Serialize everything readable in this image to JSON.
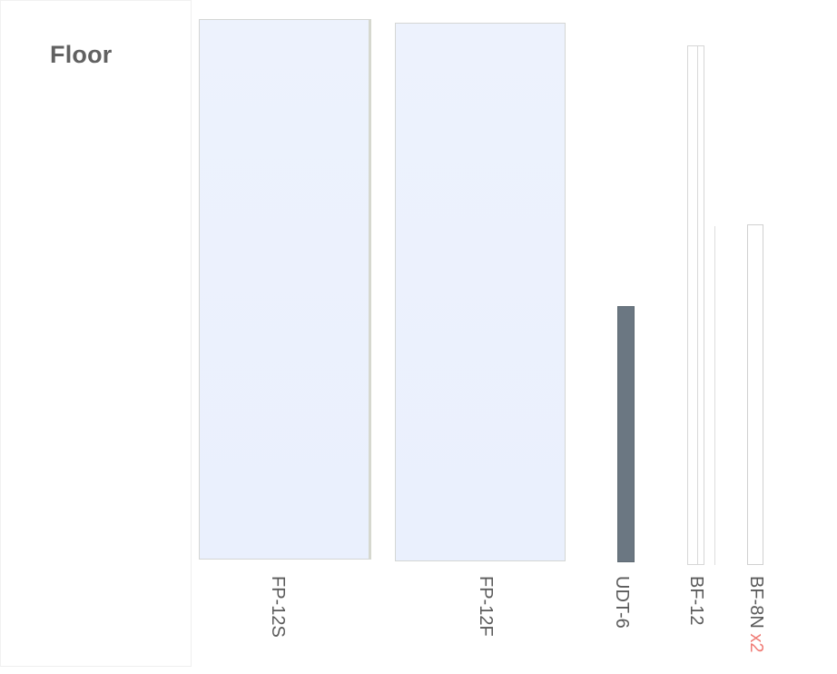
{
  "section": {
    "title": "Floor"
  },
  "items": [
    {
      "label": "FP-12S"
    },
    {
      "label": "FP-12F"
    },
    {
      "label": "UDT-6"
    },
    {
      "label": "BF-12"
    },
    {
      "label": "BF-8N",
      "qty": "x2"
    }
  ],
  "colors": {
    "panel_fill": "#eaf0fd",
    "udt_fill": "#6b7782",
    "qty_accent": "#f07b75",
    "label_text": "#5a5a5a"
  }
}
